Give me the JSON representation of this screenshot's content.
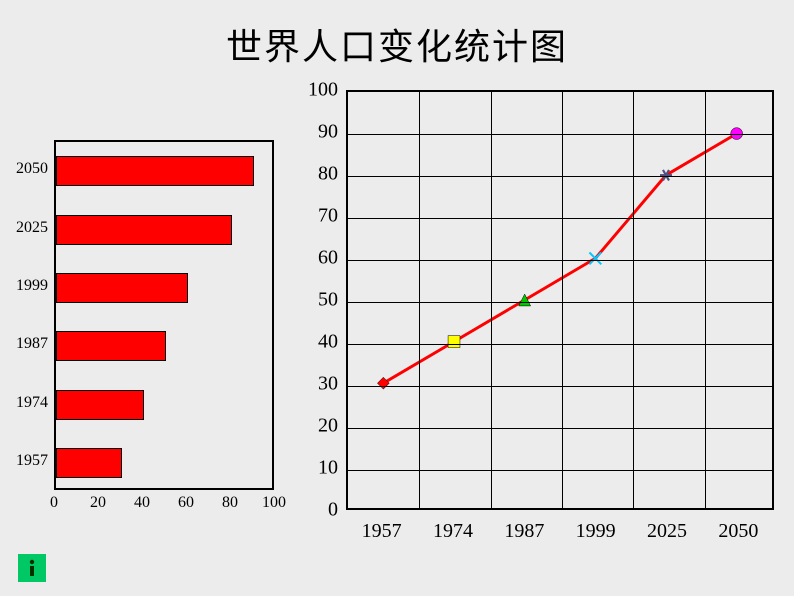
{
  "title": "世界人口变化统计图",
  "bar_chart": {
    "type": "bar-horizontal",
    "categories": [
      "2050",
      "2025",
      "1999",
      "1987",
      "1974",
      "1957"
    ],
    "values": [
      90,
      80,
      60,
      50,
      40,
      30
    ],
    "xlim": [
      0,
      100
    ],
    "xtick_step": 20,
    "xtick_labels": [
      "0",
      "20",
      "40",
      "60",
      "80",
      "100"
    ],
    "bar_color": "#ff0000",
    "bar_border": "#000000",
    "axis_color": "#000000",
    "background": "#ececec",
    "label_fontsize": 16,
    "label_font": "Times New Roman"
  },
  "line_chart": {
    "type": "line",
    "categories": [
      "1957",
      "1974",
      "1987",
      "1999",
      "2025",
      "2050"
    ],
    "values": [
      30,
      40,
      50,
      60,
      80,
      90
    ],
    "ylim": [
      0,
      100
    ],
    "ytick_step": 10,
    "ytick_labels": [
      "0",
      "10",
      "20",
      "30",
      "40",
      "50",
      "60",
      "70",
      "80",
      "90",
      "100"
    ],
    "line_color": "#ff0000",
    "line_width": 3,
    "marker_colors": [
      "#ff0000",
      "#ffff00",
      "#00c800",
      "#00c8ff",
      "#505080",
      "#ff00ff"
    ],
    "marker_shapes": [
      "diamond",
      "square",
      "triangle",
      "x",
      "star",
      "circle"
    ],
    "axis_color": "#000000",
    "grid_color": "#000000",
    "background": "#ececec",
    "label_fontsize": 20,
    "label_font": "Times New Roman"
  },
  "page_background": "#ececec",
  "title_fontsize": 36,
  "info_icon_color": "#00c864"
}
